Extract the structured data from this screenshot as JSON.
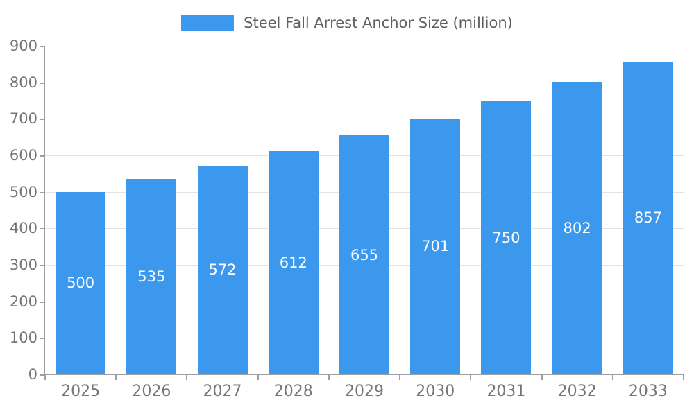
{
  "chart_data": {
    "type": "bar",
    "title": "Steel Fall Arrest Anchor Size (million)",
    "categories": [
      "2025",
      "2026",
      "2027",
      "2028",
      "2029",
      "2030",
      "2031",
      "2032",
      "2033"
    ],
    "values": [
      500,
      535,
      572,
      612,
      655,
      701,
      750,
      802,
      857
    ],
    "xlabel": "",
    "ylabel": "",
    "ylim": [
      0,
      900
    ],
    "ytick_step": 100,
    "grid": true,
    "legend_position": "top-center",
    "value_labels": "centered-in-bar",
    "colors": {
      "bar": "#3b98ed",
      "value_label": "#ffffff",
      "axis_text": "#757575",
      "axis_line": "#9e9e9e",
      "grid_line": "#e3e3e3",
      "legend_text": "#616161",
      "background": "#ffffff"
    }
  }
}
